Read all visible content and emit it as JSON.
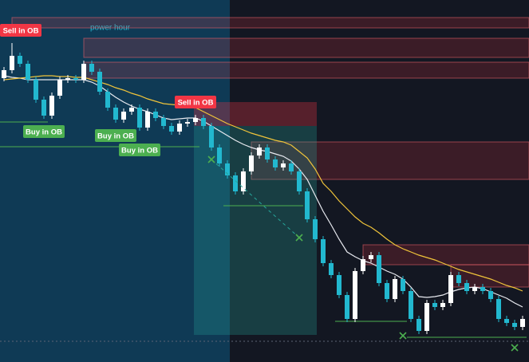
{
  "chart_data": {
    "type": "candlestick",
    "session_label": "power hour",
    "ylim": [
      0,
      454
    ],
    "up_color": "#ffffff",
    "down_color": "#22b8cf",
    "open": [
      356,
      366,
      384,
      374,
      354,
      329,
      309,
      334,
      354,
      356,
      354,
      374,
      364,
      339,
      319,
      304,
      314,
      319,
      294,
      314,
      306,
      296,
      289,
      299,
      301,
      306,
      296,
      269,
      249,
      234,
      214,
      239,
      259,
      269,
      254,
      244,
      249,
      239,
      214,
      179,
      154,
      124,
      109,
      84,
      54,
      114,
      129,
      134,
      99,
      79,
      104,
      89,
      54,
      39,
      74,
      69,
      74,
      109,
      99,
      89,
      94,
      89,
      79,
      54,
      49,
      44
    ],
    "high": [
      370,
      400,
      388,
      378,
      358,
      333,
      338,
      358,
      360,
      360,
      378,
      378,
      368,
      343,
      323,
      318,
      323,
      323,
      318,
      318,
      310,
      300,
      303,
      305,
      310,
      310,
      300,
      273,
      253,
      238,
      243,
      263,
      273,
      273,
      258,
      253,
      253,
      243,
      218,
      183,
      158,
      128,
      113,
      88,
      118,
      133,
      138,
      138,
      103,
      108,
      108,
      93,
      58,
      78,
      78,
      78,
      113,
      113,
      103,
      98,
      98,
      93,
      83,
      58,
      53,
      58
    ],
    "low": [
      352,
      362,
      370,
      350,
      325,
      305,
      305,
      330,
      350,
      350,
      350,
      360,
      335,
      315,
      300,
      300,
      310,
      290,
      290,
      302,
      292,
      285,
      285,
      295,
      297,
      292,
      265,
      245,
      230,
      210,
      210,
      235,
      255,
      250,
      240,
      240,
      235,
      210,
      175,
      150,
      120,
      105,
      80,
      50,
      50,
      110,
      125,
      95,
      75,
      75,
      85,
      50,
      35,
      35,
      65,
      65,
      70,
      95,
      85,
      85,
      85,
      75,
      50,
      45,
      40,
      40
    ],
    "close": [
      366,
      384,
      374,
      354,
      329,
      309,
      334,
      354,
      356,
      354,
      374,
      364,
      339,
      319,
      304,
      314,
      319,
      294,
      314,
      306,
      296,
      289,
      299,
      301,
      306,
      296,
      269,
      249,
      234,
      214,
      239,
      259,
      269,
      254,
      244,
      249,
      239,
      214,
      179,
      154,
      124,
      109,
      84,
      54,
      114,
      129,
      134,
      99,
      79,
      104,
      89,
      54,
      39,
      74,
      69,
      74,
      109,
      99,
      89,
      94,
      89,
      79,
      54,
      49,
      44,
      54
    ],
    "series": [
      {
        "color": "#e8eaf0",
        "values": [
          359,
          357,
          356,
          354,
          354,
          354,
          354,
          354,
          354,
          354,
          354,
          351,
          346,
          339,
          332,
          326,
          321,
          317,
          314,
          310,
          306,
          304,
          305,
          306,
          306,
          302,
          296,
          290,
          284,
          278,
          273,
          269,
          266,
          264,
          261,
          258,
          252,
          242,
          229,
          209,
          189,
          172,
          154,
          138,
          132,
          127,
          124,
          119,
          114,
          110,
          104,
          94,
          82,
          81,
          82,
          84,
          88,
          91,
          93,
          94,
          92,
          88,
          84,
          80,
          74,
          69
        ]
      },
      {
        "color": "#f0c43a",
        "values": [
          354,
          355,
          356,
          357,
          358,
          359,
          359,
          358,
          358,
          357,
          357,
          354,
          351,
          348,
          344,
          341,
          337,
          334,
          330,
          327,
          324,
          323,
          322,
          320,
          319,
          314,
          309,
          304,
          299,
          295,
          291,
          287,
          284,
          281,
          278,
          276,
          272,
          264,
          256,
          242,
          224,
          214,
          202,
          192,
          182,
          174,
          169,
          162,
          154,
          147,
          142,
          138,
          134,
          131,
          128,
          124,
          120,
          116,
          113,
          110,
          107,
          104,
          100,
          96,
          93,
          89
        ]
      }
    ],
    "zones": [
      {
        "from": 1,
        "top": 432,
        "bottom": 419
      },
      {
        "from": 10,
        "top": 406,
        "bottom": 382
      },
      {
        "from": 10,
        "top": 376,
        "bottom": 356
      },
      {
        "from": 31,
        "top": 276,
        "bottom": 229
      },
      {
        "from": 45,
        "top": 147,
        "bottom": 122
      },
      {
        "from": 56,
        "top": 122,
        "bottom": 94
      }
    ],
    "levels": [
      {
        "from": 0,
        "to": 5,
        "value": 301
      },
      {
        "from": 0,
        "to": 24,
        "value": 270
      },
      {
        "from": 28,
        "to": 37,
        "value": 196
      },
      {
        "from": 42,
        "to": 50,
        "value": 51
      },
      {
        "from": 51,
        "to": 65,
        "value": 31
      }
    ],
    "position": {
      "from": 24,
      "to": 39,
      "stop": 326,
      "entry": 296,
      "target": 34
    },
    "markers": [
      {
        "index": 26,
        "value": 254
      },
      {
        "index": 37,
        "value": 156
      },
      {
        "index": 50,
        "value": 33
      },
      {
        "index": 64,
        "value": 18
      }
    ],
    "annotations": [
      {
        "text": "Sell in OB",
        "index": 1,
        "kind": "sell"
      },
      {
        "text": "Sell in OB",
        "index": 24,
        "kind": "sell"
      },
      {
        "text": "Buy in OB",
        "index": 5,
        "kind": "buy"
      },
      {
        "text": "Buy in OB",
        "index": 14,
        "kind": "buy"
      },
      {
        "text": "Buy in OB",
        "index": 17,
        "kind": "buy"
      }
    ]
  }
}
